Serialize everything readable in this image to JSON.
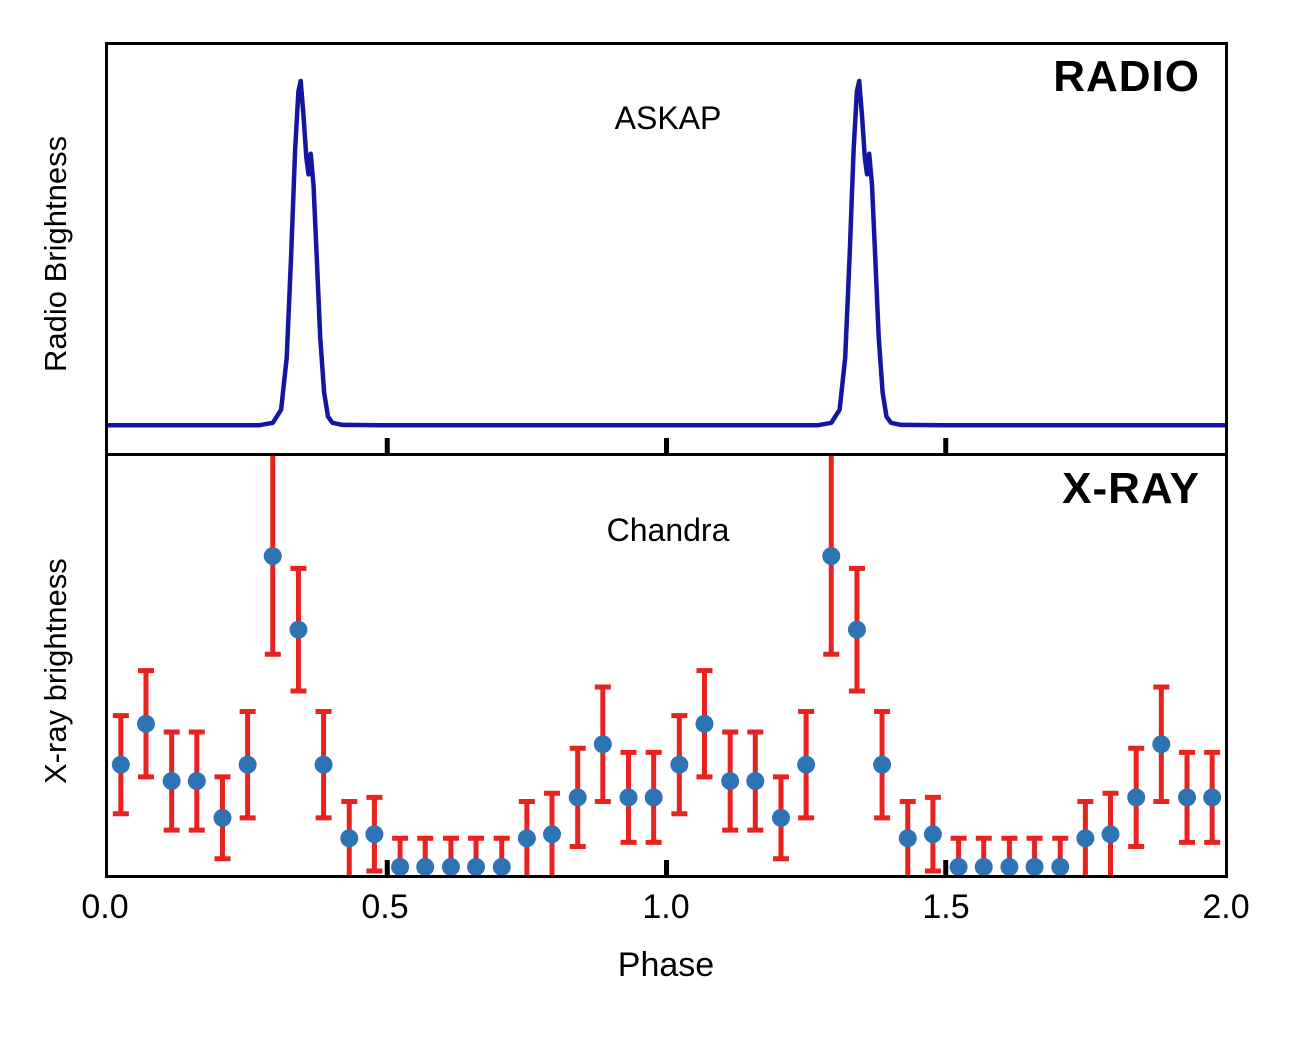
{
  "figure": {
    "background": "#ffffff",
    "border_color": "#000000"
  },
  "chart_data": [
    {
      "type": "line",
      "title": "RADIO",
      "annotation": "ASKAP",
      "ylabel": "Radio Brightness",
      "xlim": [
        0,
        2
      ],
      "line_color": "#1515a3",
      "description": "Phase-folded radio pulse profile, sharp peak repeating at phase 0.345 and 1.345 with small secondary bump on decline; flat baseline elsewhere. Brightness normalized 0-1.",
      "x": [
        0.0,
        0.27,
        0.295,
        0.31,
        0.32,
        0.328,
        0.335,
        0.341,
        0.345,
        0.35,
        0.355,
        0.359,
        0.363,
        0.368,
        0.374,
        0.38,
        0.387,
        0.394,
        0.402,
        0.42,
        0.5,
        1.27,
        1.295,
        1.31,
        1.32,
        1.328,
        1.335,
        1.341,
        1.345,
        1.35,
        1.355,
        1.359,
        1.363,
        1.368,
        1.374,
        1.38,
        1.387,
        1.394,
        1.402,
        1.42,
        1.5,
        2.0
      ],
      "y": [
        0.005,
        0.005,
        0.012,
        0.05,
        0.2,
        0.5,
        0.8,
        0.97,
        1.0,
        0.9,
        0.78,
        0.73,
        0.79,
        0.7,
        0.48,
        0.26,
        0.1,
        0.03,
        0.012,
        0.006,
        0.005,
        0.005,
        0.012,
        0.05,
        0.2,
        0.5,
        0.8,
        0.97,
        1.0,
        0.9,
        0.78,
        0.73,
        0.79,
        0.7,
        0.48,
        0.26,
        0.1,
        0.03,
        0.012,
        0.006,
        0.005,
        0.005
      ]
    },
    {
      "type": "scatter",
      "title": "X-RAY",
      "annotation": "Chandra",
      "ylabel": "X-ray brightness",
      "xlabel": "Phase",
      "xlim": [
        0,
        2
      ],
      "x_ticks": [
        0,
        0.5,
        1,
        1.5,
        2
      ],
      "x_tick_labels": [
        "0.0",
        "0.5",
        "1.0",
        "1.5",
        "2.0"
      ],
      "point_color": "#2e74b5",
      "error_color": "#e8221f",
      "description": "Phase-folded X-ray light curve with error bars; brightness normalized 0-1; peak at phase 0.295 and 1.295 with upper error bar clipped at panel top.",
      "points": [
        {
          "x": 0.023,
          "y": 0.26,
          "err": 0.12
        },
        {
          "x": 0.068,
          "y": 0.36,
          "err": 0.13
        },
        {
          "x": 0.114,
          "y": 0.22,
          "err": 0.12
        },
        {
          "x": 0.159,
          "y": 0.22,
          "err": 0.12
        },
        {
          "x": 0.205,
          "y": 0.13,
          "err": 0.1
        },
        {
          "x": 0.25,
          "y": 0.26,
          "err": 0.13
        },
        {
          "x": 0.295,
          "y": 0.77,
          "err": 0.24
        },
        {
          "x": 0.341,
          "y": 0.59,
          "err": 0.15
        },
        {
          "x": 0.386,
          "y": 0.26,
          "err": 0.13
        },
        {
          "x": 0.432,
          "y": 0.08,
          "err": 0.09
        },
        {
          "x": 0.477,
          "y": 0.09,
          "err": 0.09
        },
        {
          "x": 0.523,
          "y": 0.01,
          "err": 0.07
        },
        {
          "x": 0.568,
          "y": 0.01,
          "err": 0.07
        },
        {
          "x": 0.614,
          "y": 0.01,
          "err": 0.07
        },
        {
          "x": 0.659,
          "y": 0.01,
          "err": 0.07
        },
        {
          "x": 0.705,
          "y": 0.01,
          "err": 0.07
        },
        {
          "x": 0.75,
          "y": 0.08,
          "err": 0.09
        },
        {
          "x": 0.795,
          "y": 0.09,
          "err": 0.1
        },
        {
          "x": 0.841,
          "y": 0.18,
          "err": 0.12
        },
        {
          "x": 0.886,
          "y": 0.31,
          "err": 0.14
        },
        {
          "x": 0.932,
          "y": 0.18,
          "err": 0.11
        },
        {
          "x": 0.977,
          "y": 0.18,
          "err": 0.11
        },
        {
          "x": 1.023,
          "y": 0.26,
          "err": 0.12
        },
        {
          "x": 1.068,
          "y": 0.36,
          "err": 0.13
        },
        {
          "x": 1.114,
          "y": 0.22,
          "err": 0.12
        },
        {
          "x": 1.159,
          "y": 0.22,
          "err": 0.12
        },
        {
          "x": 1.205,
          "y": 0.13,
          "err": 0.1
        },
        {
          "x": 1.25,
          "y": 0.26,
          "err": 0.13
        },
        {
          "x": 1.295,
          "y": 0.77,
          "err": 0.24
        },
        {
          "x": 1.341,
          "y": 0.59,
          "err": 0.15
        },
        {
          "x": 1.386,
          "y": 0.26,
          "err": 0.13
        },
        {
          "x": 1.432,
          "y": 0.08,
          "err": 0.09
        },
        {
          "x": 1.477,
          "y": 0.09,
          "err": 0.09
        },
        {
          "x": 1.523,
          "y": 0.01,
          "err": 0.07
        },
        {
          "x": 1.568,
          "y": 0.01,
          "err": 0.07
        },
        {
          "x": 1.614,
          "y": 0.01,
          "err": 0.07
        },
        {
          "x": 1.659,
          "y": 0.01,
          "err": 0.07
        },
        {
          "x": 1.705,
          "y": 0.01,
          "err": 0.07
        },
        {
          "x": 1.75,
          "y": 0.08,
          "err": 0.09
        },
        {
          "x": 1.795,
          "y": 0.09,
          "err": 0.1
        },
        {
          "x": 1.841,
          "y": 0.18,
          "err": 0.12
        },
        {
          "x": 1.886,
          "y": 0.31,
          "err": 0.14
        },
        {
          "x": 1.932,
          "y": 0.18,
          "err": 0.11
        },
        {
          "x": 1.977,
          "y": 0.18,
          "err": 0.11
        }
      ]
    }
  ]
}
